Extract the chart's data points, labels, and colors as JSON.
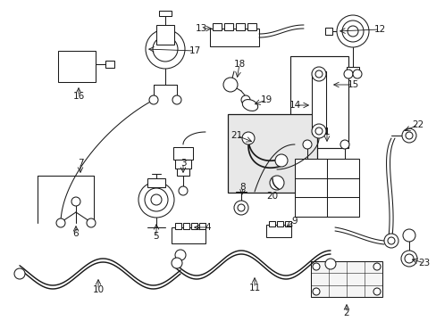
{
  "bg_color": "#ffffff",
  "line_color": "#1a1a1a",
  "fig_width": 4.89,
  "fig_height": 3.6,
  "dpi": 100,
  "label_fontsize": 7.5,
  "lw": 0.75
}
